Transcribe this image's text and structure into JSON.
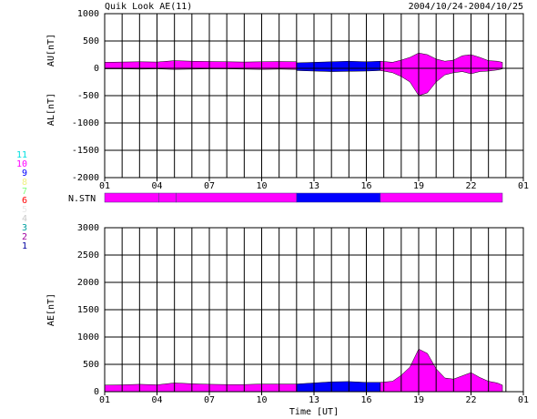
{
  "chart_data": [
    {
      "type": "area",
      "title": "Quik Look AE(11)",
      "subtitle": "2004/10/24-2004/10/25",
      "ylabels": [
        "AU[nT]",
        "AL[nT]"
      ],
      "xlim": [
        0,
        24
      ],
      "xticks": [
        {
          "value": 0,
          "label": "01"
        },
        {
          "value": 3,
          "label": "04"
        },
        {
          "value": 6,
          "label": "07"
        },
        {
          "value": 9,
          "label": "10"
        },
        {
          "value": 12,
          "label": "13"
        },
        {
          "value": 15,
          "label": "16"
        },
        {
          "value": 18,
          "label": "19"
        },
        {
          "value": 21,
          "label": "22"
        },
        {
          "value": 24,
          "label": "01"
        }
      ],
      "xgrid": [
        1,
        2,
        3,
        4,
        5,
        6,
        7,
        8,
        9,
        10,
        11,
        12,
        13,
        14,
        15,
        16,
        17,
        18,
        19,
        20,
        21,
        22,
        23
      ],
      "ylim": [
        -2000,
        1000
      ],
      "yticks": [
        -2000,
        -1500,
        -1000,
        -500,
        0,
        500,
        1000
      ],
      "series": [
        {
          "stations": 10,
          "x": [
            0,
            1,
            2,
            3,
            4,
            5,
            6,
            7,
            8,
            9,
            10,
            11
          ],
          "values": [
            110,
            115,
            120,
            115,
            140,
            130,
            125,
            120,
            115,
            120,
            125,
            120
          ]
        },
        {
          "stations": 10,
          "x": [
            0,
            1,
            2,
            3,
            4,
            5,
            6,
            7,
            8,
            9,
            10,
            11
          ],
          "values": [
            -10,
            -10,
            -15,
            -10,
            -20,
            -15,
            -10,
            -10,
            -15,
            -20,
            -15,
            -20
          ]
        },
        {
          "stations": 9,
          "x": [
            11,
            12,
            13,
            14,
            15,
            15.8
          ],
          "values": [
            100,
            110,
            120,
            130,
            120,
            130
          ]
        },
        {
          "stations": 9,
          "x": [
            11,
            12,
            13,
            14,
            15,
            15.8
          ],
          "values": [
            -40,
            -50,
            -60,
            -55,
            -50,
            -40
          ]
        },
        {
          "stations": 10,
          "x": [
            15.8,
            16.5,
            17,
            17.5,
            18,
            18.5,
            19,
            19.5,
            20,
            20.5,
            21,
            21.5,
            22,
            22.5,
            22.8
          ],
          "values": [
            130,
            110,
            150,
            200,
            280,
            250,
            170,
            130,
            150,
            230,
            250,
            200,
            140,
            130,
            110
          ]
        },
        {
          "stations": 10,
          "x": [
            15.8,
            16.5,
            17,
            17.5,
            18,
            18.5,
            19,
            19.5,
            20,
            20.5,
            21,
            21.5,
            22,
            22.5,
            22.8
          ],
          "values": [
            -40,
            -80,
            -150,
            -250,
            -500,
            -450,
            -250,
            -120,
            -80,
            -60,
            -100,
            -60,
            -50,
            -30,
            -10
          ]
        }
      ]
    },
    {
      "type": "segments",
      "label": "N.STN",
      "segments": [
        {
          "start": 0,
          "end": 3.1,
          "stations": 10
        },
        {
          "start": 3.1,
          "end": 4.1,
          "stations": 10
        },
        {
          "start": 4.1,
          "end": 11,
          "stations": 10
        },
        {
          "start": 11,
          "end": 15.8,
          "stations": 9
        },
        {
          "start": 15.8,
          "end": 22.8,
          "stations": 10
        }
      ],
      "legend": [
        {
          "label": "11",
          "color": "#00e0e0"
        },
        {
          "label": "10",
          "color": "#ff00ff"
        },
        {
          "label": "9",
          "color": "#0000ff"
        },
        {
          "label": "8",
          "color": "#f0f080"
        },
        {
          "label": "7",
          "color": "#80ff80"
        },
        {
          "label": "6",
          "color": "#ff0000"
        },
        {
          "label": "5",
          "color": "#e8e8e8"
        },
        {
          "label": "4",
          "color": "#c8c8c8"
        },
        {
          "label": "3",
          "color": "#00a0a0"
        },
        {
          "label": "2",
          "color": "#a000a0"
        },
        {
          "label": "1",
          "color": "#0000a0"
        }
      ]
    },
    {
      "type": "area",
      "ylabels": [
        "AE[nT]"
      ],
      "xlabel": "Time [UT]",
      "xlim": [
        0,
        24
      ],
      "xticks": [
        {
          "value": 0,
          "label": "01"
        },
        {
          "value": 3,
          "label": "04"
        },
        {
          "value": 6,
          "label": "07"
        },
        {
          "value": 9,
          "label": "10"
        },
        {
          "value": 12,
          "label": "13"
        },
        {
          "value": 15,
          "label": "16"
        },
        {
          "value": 18,
          "label": "19"
        },
        {
          "value": 21,
          "label": "22"
        },
        {
          "value": 24,
          "label": "01"
        }
      ],
      "xgrid": [
        1,
        2,
        3,
        4,
        5,
        6,
        7,
        8,
        9,
        10,
        11,
        12,
        13,
        14,
        15,
        16,
        17,
        18,
        19,
        20,
        21,
        22,
        23
      ],
      "ylim": [
        0,
        3000
      ],
      "yticks": [
        0,
        500,
        1000,
        1500,
        2000,
        2500,
        3000
      ],
      "series": [
        {
          "stations": 10,
          "x": [
            0,
            1,
            2,
            3,
            4,
            5,
            6,
            7,
            8,
            9,
            10,
            11
          ],
          "values": [
            120,
            125,
            135,
            125,
            160,
            145,
            135,
            130,
            130,
            140,
            140,
            140
          ]
        },
        {
          "stations": 9,
          "x": [
            11,
            12,
            13,
            14,
            15,
            15.8
          ],
          "values": [
            140,
            160,
            180,
            185,
            170,
            170
          ]
        },
        {
          "stations": 10,
          "x": [
            15.8,
            16.5,
            17,
            17.5,
            18,
            18.5,
            19,
            19.5,
            20,
            20.5,
            21,
            21.5,
            22,
            22.5,
            22.8
          ],
          "values": [
            170,
            190,
            300,
            450,
            780,
            700,
            420,
            250,
            230,
            290,
            350,
            260,
            190,
            160,
            120
          ]
        }
      ]
    }
  ]
}
